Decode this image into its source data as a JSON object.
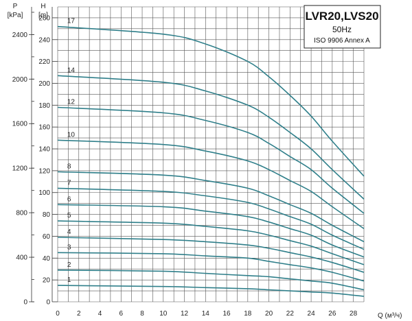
{
  "chart_data": {
    "type": "line",
    "title": "LVR20,LVS20",
    "subtitle": "50Hz",
    "note": "ISO 9906 Annex A",
    "x_axis": {
      "label": "Q (м³/ч)",
      "range": [
        0,
        29
      ],
      "ticks": [
        "0",
        "2",
        "4",
        "6",
        "8",
        "10",
        "12",
        "14",
        "16",
        "18",
        "20",
        "22",
        "24",
        "26",
        "28"
      ]
    },
    "y_axis_left": {
      "label": "P",
      "unit": "[kPa]",
      "ticks": [
        "0",
        "400",
        "800",
        "1200",
        "1600",
        "2000",
        "2400"
      ]
    },
    "y_axis_right": {
      "label": "H",
      "unit": "[m]",
      "range": [
        0,
        270
      ],
      "ticks": [
        "0",
        "20",
        "40",
        "60",
        "80",
        "100",
        "120",
        "140",
        "160",
        "180",
        "200",
        "220",
        "240",
        "260"
      ]
    },
    "grid": true,
    "series": [
      {
        "name": "1",
        "x": [
          0,
          10,
          14,
          18,
          20,
          22,
          24,
          26,
          29
        ],
        "y": [
          15,
          14,
          13,
          12,
          11,
          10,
          9,
          8,
          5
        ]
      },
      {
        "name": "2",
        "x": [
          0,
          10,
          14,
          18,
          20,
          22,
          24,
          26,
          29
        ],
        "y": [
          29,
          28,
          26,
          24,
          23,
          21,
          19,
          17,
          11
        ]
      },
      {
        "name": "3",
        "x": [
          0,
          10,
          14,
          18,
          20,
          22,
          24,
          26,
          29
        ],
        "y": [
          45,
          44,
          42,
          40,
          37,
          34,
          31,
          27,
          19
        ]
      },
      {
        "name": "4",
        "x": [
          0,
          10,
          14,
          18,
          20,
          22,
          24,
          26,
          29
        ],
        "y": [
          59,
          57,
          55,
          52,
          49,
          45,
          41,
          36,
          27
        ]
      },
      {
        "name": "5",
        "x": [
          0,
          10,
          14,
          18,
          20,
          22,
          24,
          26,
          29
        ],
        "y": [
          74,
          72,
          69,
          65,
          61,
          56,
          51,
          44,
          34
        ]
      },
      {
        "name": "6",
        "x": [
          0,
          10,
          14,
          18,
          20,
          22,
          24,
          26,
          29
        ],
        "y": [
          89,
          87,
          83,
          78,
          73,
          67,
          61,
          52,
          41
        ]
      },
      {
        "name": "7",
        "x": [
          0,
          10,
          14,
          18,
          20,
          22,
          24,
          26,
          29
        ],
        "y": [
          104,
          101,
          97,
          91,
          85,
          78,
          71,
          61,
          48
        ]
      },
      {
        "name": "8",
        "x": [
          0,
          10,
          14,
          18,
          20,
          22,
          24,
          26,
          29
        ],
        "y": [
          119,
          116,
          111,
          104,
          97,
          89,
          81,
          70,
          55
        ]
      },
      {
        "name": "10",
        "x": [
          0,
          10,
          14,
          18,
          20,
          22,
          24,
          26,
          29
        ],
        "y": [
          148,
          144,
          138,
          129,
          121,
          111,
          101,
          87,
          67
        ]
      },
      {
        "name": "12",
        "x": [
          0,
          10,
          14,
          18,
          20,
          22,
          24,
          26,
          29
        ],
        "y": [
          178,
          173,
          166,
          155,
          145,
          133,
          121,
          104,
          81
        ]
      },
      {
        "name": "14",
        "x": [
          0,
          10,
          14,
          18,
          20,
          22,
          24,
          26,
          29
        ],
        "y": [
          207,
          201,
          193,
          180,
          169,
          155,
          140,
          121,
          94
        ]
      },
      {
        "name": "17",
        "x": [
          0,
          10,
          14,
          18,
          20,
          22,
          24,
          26,
          29
        ],
        "y": [
          252,
          245,
          236,
          220,
          206,
          189,
          170,
          147,
          115
        ]
      }
    ]
  }
}
